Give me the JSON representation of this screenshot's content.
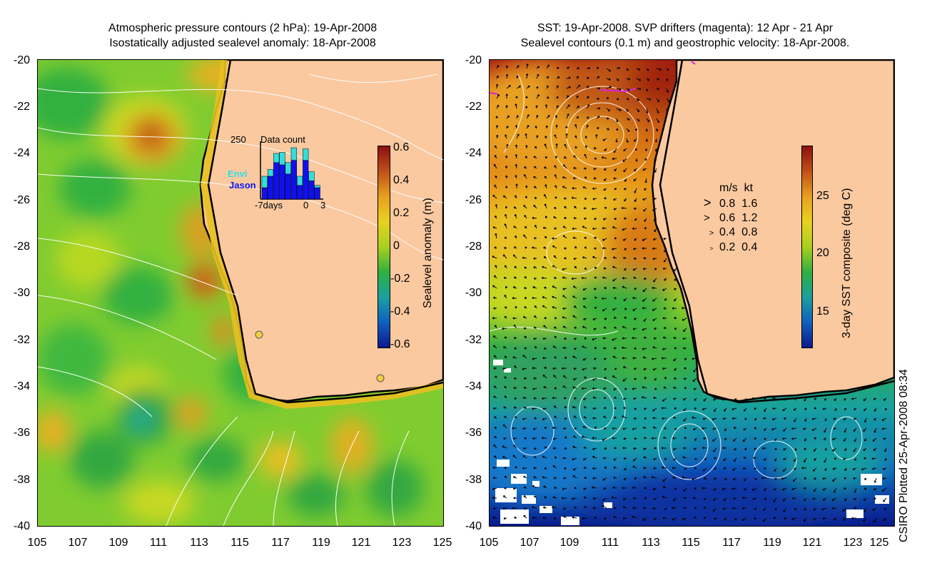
{
  "left_panel": {
    "title_line1": "Atmospheric pressure contours (2 hPa): 19-Apr-2008",
    "title_line2": "Isostatically adjusted sealevel anomaly: 18-Apr-2008",
    "y_ticks": [
      "-20",
      "-22",
      "-24",
      "-26",
      "-28",
      "-30",
      "-32",
      "-34",
      "-36",
      "-38",
      "-40"
    ],
    "x_ticks": [
      "105",
      "107",
      "109",
      "111",
      "113",
      "115",
      "117",
      "119",
      "121",
      "123",
      "125"
    ],
    "colorbar": {
      "label": "Sealevel anomaly (m)",
      "ticks": [
        "0.6",
        "0.4",
        "0.2",
        "0",
        "-0.2",
        "-0.4",
        "-0.6"
      ]
    },
    "inset": {
      "top_value": "250",
      "title": "Data count",
      "legend": [
        "Envi",
        "Jason"
      ],
      "x_labels": [
        "-7days",
        "0",
        "3"
      ],
      "envi_color": "#33dddd",
      "jason_color": "#1010ee",
      "envi_counts": [
        50,
        30,
        40,
        55,
        50,
        55,
        40,
        50,
        40,
        10
      ],
      "jason_counts": [
        50,
        100,
        160,
        150,
        110,
        170,
        60,
        170,
        80,
        50
      ]
    }
  },
  "right_panel": {
    "title_line1": "SST: 19-Apr-2008. SVP drifters (magenta): 12 Apr - 21 Apr",
    "title_line2": "Sealevel contours (0.1 m) and geostrophic velocity: 18-Apr-2008.",
    "y_ticks": [
      "-20",
      "-22",
      "-24",
      "-26",
      "-28",
      "-30",
      "-32",
      "-34",
      "-36",
      "-38",
      "-40"
    ],
    "x_ticks": [
      "105",
      "107",
      "109",
      "111",
      "113",
      "115",
      "117",
      "119",
      "121",
      "123",
      "125"
    ],
    "colorbar": {
      "label": "3-day SST composite (deg C)",
      "ticks": [
        "25",
        "20",
        "15"
      ]
    },
    "velocity_legend": {
      "header_ms": "m/s",
      "header_kt": "kt",
      "rows": [
        {
          "ms": "0.8",
          "kt": "1.6"
        },
        {
          "ms": "0.6",
          "kt": "1.2"
        },
        {
          "ms": "0.4",
          "kt": "0.8"
        },
        {
          "ms": "0.2",
          "kt": "0.4"
        }
      ]
    }
  },
  "credit": "CSIRO Plotted 25-Apr-2008 08:34",
  "colors": {
    "land": "#fac9a0",
    "coast": "#000000",
    "contour": "#ffffff",
    "drifter": "#e020e0"
  }
}
